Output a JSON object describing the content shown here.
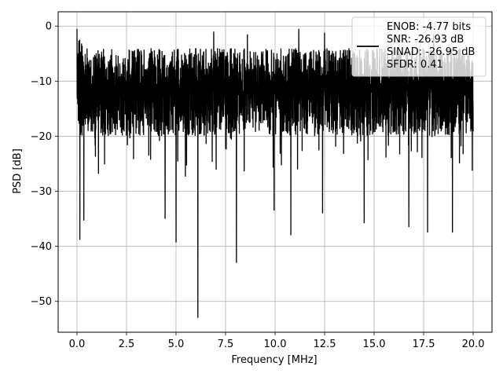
{
  "chart_data": {
    "type": "line",
    "title": "",
    "xlabel": "Frequency [MHz]",
    "ylabel": "PSD [dB]",
    "xlim": [
      -0.95,
      20.95
    ],
    "ylim": [
      -55.6,
      2.6
    ],
    "grid": true,
    "legend_position": "top-right",
    "line_color": "#000000",
    "x_ticks": [
      0.0,
      2.5,
      5.0,
      7.5,
      10.0,
      12.5,
      15.0,
      17.5,
      20.0
    ],
    "x_tick_labels": [
      "0.0",
      "2.5",
      "5.0",
      "7.5",
      "10.0",
      "12.5",
      "15.0",
      "17.5",
      "20.0"
    ],
    "y_ticks": [
      0,
      -10,
      -20,
      -30,
      -40,
      -50
    ],
    "y_tick_labels": [
      "0",
      "−10",
      "−20",
      "−30",
      "−40",
      "−50"
    ],
    "legend_entries": [
      "ENOB: -4.77 bits",
      "SNR: -26.93 dB",
      "SINAD: -26.95 dB",
      "SFDR: 0.41"
    ],
    "series": [
      {
        "x_start": 0.0,
        "x_end": 20.0,
        "description_values": {
          "notable_dips": [
            {
              "x": 6.1,
              "y": -53.0
            },
            {
              "x": 8.05,
              "y": -43.0
            },
            {
              "x": 5.0,
              "y": -39.3
            },
            {
              "x": 0.15,
              "y": -38.8
            },
            {
              "x": 10.8,
              "y": -38.0
            },
            {
              "x": 18.95,
              "y": -37.5
            },
            {
              "x": 16.75,
              "y": -36.5
            },
            {
              "x": 17.7,
              "y": -37.5
            },
            {
              "x": 14.5,
              "y": -35.8
            },
            {
              "x": 0.35,
              "y": -35.3
            },
            {
              "x": 12.4,
              "y": -34.0
            },
            {
              "x": 4.45,
              "y": -35.0
            },
            {
              "x": 9.95,
              "y": -33.5
            }
          ],
          "notable_peaks": [
            {
              "x": 0.0,
              "y": -0.5
            },
            {
              "x": 8.6,
              "y": -1.5
            },
            {
              "x": 11.2,
              "y": -0.5
            },
            {
              "x": 6.9,
              "y": -1.0
            },
            {
              "x": 12.5,
              "y": -1.2
            },
            {
              "x": 18.0,
              "y": -1.5
            }
          ],
          "upper_envelope_db": -4,
          "lower_envelope_db": -26,
          "center_db": -13
        }
      }
    ]
  }
}
